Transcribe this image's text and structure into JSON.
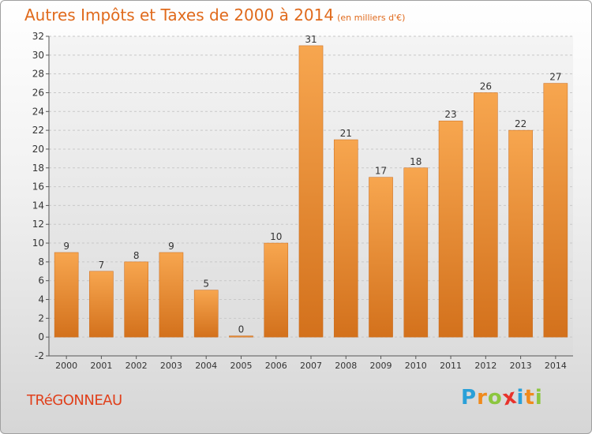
{
  "chart_data": {
    "type": "bar",
    "title": "Autres Impôts et Taxes de 2000 à 2014",
    "subtitle": "(en milliers d'€)",
    "categories": [
      "2000",
      "2001",
      "2002",
      "2003",
      "2004",
      "2005",
      "2006",
      "2007",
      "2008",
      "2009",
      "2010",
      "2011",
      "2012",
      "2013",
      "2014"
    ],
    "values": [
      9,
      7,
      8,
      9,
      5,
      0,
      10,
      31,
      21,
      17,
      18,
      23,
      26,
      22,
      27
    ],
    "data_labels": [
      "9",
      "7",
      "8",
      "9",
      "5",
      "0",
      "10",
      "31",
      "21",
      "17",
      "18",
      "23",
      "26",
      "22",
      "27"
    ],
    "yticks": [
      "-2",
      "0",
      "2",
      "4",
      "6",
      "8",
      "10",
      "12",
      "14",
      "16",
      "18",
      "20",
      "22",
      "24",
      "26",
      "28",
      "30",
      "32"
    ],
    "ylim": [
      -2,
      32
    ],
    "xlabel": "",
    "ylabel": "",
    "grid": "horizontal dashed",
    "colors": {
      "bar_top": "#f7a64f",
      "bar_bottom": "#d3711c",
      "title": "#e06a1c"
    }
  },
  "footer": {
    "commune": "TRéGONNEAU",
    "brand_letters": [
      {
        "ch": "P",
        "color": "#2aa0d8"
      },
      {
        "ch": "r",
        "color": "#f08a1c"
      },
      {
        "ch": "o",
        "color": "#8cc63f"
      },
      {
        "ch": "x",
        "color": "#e8322b"
      },
      {
        "ch": "i",
        "color": "#2aa0d8"
      },
      {
        "ch": "t",
        "color": "#f08a1c"
      },
      {
        "ch": "i",
        "color": "#8cc63f"
      }
    ]
  }
}
